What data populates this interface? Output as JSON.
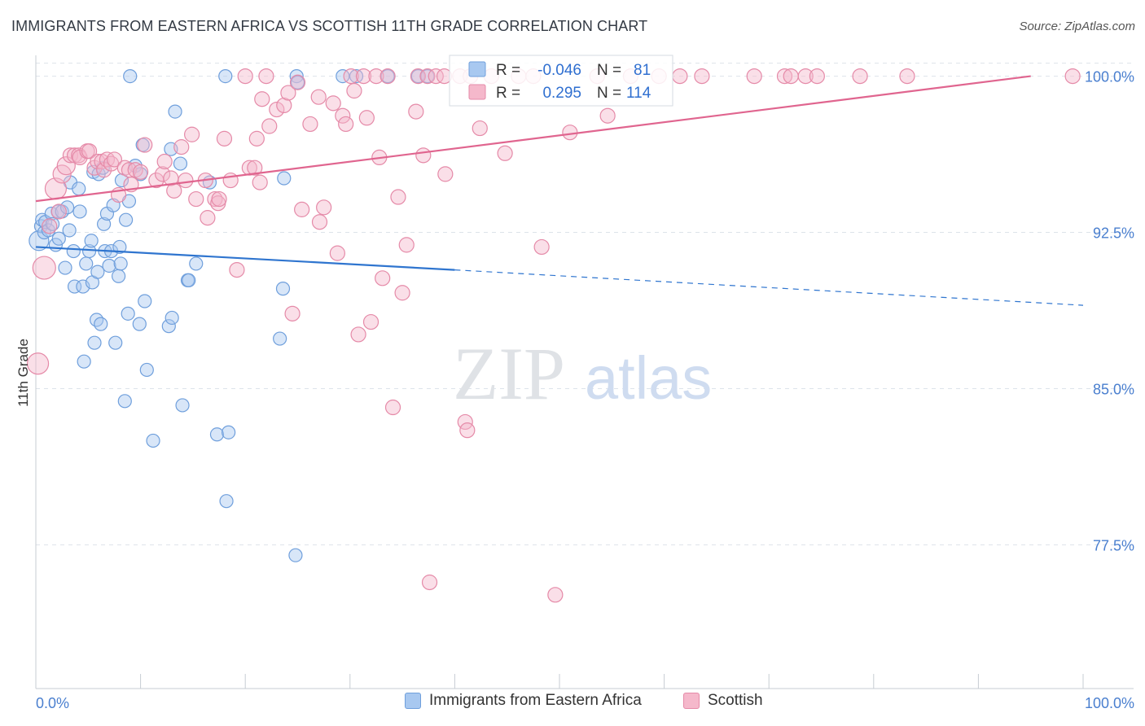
{
  "title": "IMMIGRANTS FROM EASTERN AFRICA VS SCOTTISH 11TH GRADE CORRELATION CHART",
  "source": "Source: ZipAtlas.com",
  "watermark": {
    "zip": "ZIP",
    "atlas": "atlas"
  },
  "colors": {
    "blue_fill": "#a8c8f0",
    "blue_stroke": "#6f9fdc",
    "blue_line": "#2f75cf",
    "pink_fill": "#f5b8cb",
    "pink_stroke": "#e58aa8",
    "pink_line": "#e0658f",
    "axis_text": "#4a7fcf",
    "grid": "#dde3ea"
  },
  "chart_data": {
    "type": "scatter",
    "title": "IMMIGRANTS FROM EASTERN AFRICA VS SCOTTISH 11TH GRADE CORRELATION CHART",
    "xlabel": "",
    "ylabel": "11th Grade",
    "xlim": [
      0,
      100
    ],
    "ylim": [
      70.6,
      101.0
    ],
    "x_ticks": [
      0,
      10,
      20,
      30,
      40,
      50,
      60,
      70,
      80,
      90,
      100
    ],
    "x_tick_labels": {
      "0": "0.0%",
      "100": "100.0%"
    },
    "y_ticks": [
      77.5,
      85.0,
      92.5,
      100.0
    ],
    "y_tick_labels": [
      "77.5%",
      "85.0%",
      "92.5%",
      "100.0%"
    ],
    "grid": true,
    "legend": [
      {
        "r_label": "R =",
        "r_value": "-0.046",
        "n_label": "N =",
        "n_value": "81"
      },
      {
        "r_label": "R =",
        "r_value": "0.295",
        "n_label": "N =",
        "n_value": "114"
      }
    ],
    "series": [
      {
        "name": "Immigrants from Eastern Africa",
        "trend": {
          "x0": 0,
          "y0": 91.8,
          "x1": 40,
          "y1": 90.7,
          "x_dash_end": 100,
          "y_dash_end": 89.0
        },
        "points": [
          [
            0.3,
            92.1,
            12
          ],
          [
            0.5,
            92.8,
            8
          ],
          [
            0.6,
            93.1,
            8
          ],
          [
            0.8,
            92.5,
            8
          ],
          [
            0.9,
            93.0,
            8
          ],
          [
            1.2,
            92.6,
            8
          ],
          [
            1.5,
            93.4,
            8
          ],
          [
            1.6,
            92.9,
            8
          ],
          [
            1.9,
            91.9,
            8
          ],
          [
            2.1,
            93.5,
            8
          ],
          [
            2.2,
            92.2,
            8
          ],
          [
            2.5,
            93.5,
            8
          ],
          [
            2.8,
            90.8,
            8
          ],
          [
            3.0,
            93.7,
            8
          ],
          [
            3.2,
            92.6,
            8
          ],
          [
            3.3,
            94.9,
            8
          ],
          [
            3.6,
            91.6,
            8
          ],
          [
            3.7,
            89.9,
            8
          ],
          [
            4.1,
            94.6,
            8
          ],
          [
            4.2,
            93.5,
            8
          ],
          [
            4.5,
            89.9,
            8
          ],
          [
            4.6,
            86.3,
            8
          ],
          [
            4.8,
            91.0,
            8
          ],
          [
            5.1,
            91.6,
            8
          ],
          [
            5.3,
            92.1,
            8
          ],
          [
            5.4,
            90.1,
            8
          ],
          [
            5.5,
            95.4,
            8
          ],
          [
            5.6,
            87.2,
            8
          ],
          [
            5.8,
            88.3,
            8
          ],
          [
            5.9,
            90.6,
            8
          ],
          [
            6.0,
            95.3,
            8
          ],
          [
            6.2,
            88.1,
            8
          ],
          [
            6.4,
            95.6,
            8
          ],
          [
            6.5,
            92.9,
            8
          ],
          [
            6.6,
            91.6,
            8
          ],
          [
            6.8,
            93.4,
            8
          ],
          [
            7.0,
            90.9,
            8
          ],
          [
            7.2,
            91.6,
            8
          ],
          [
            7.4,
            93.8,
            8
          ],
          [
            7.6,
            87.2,
            8
          ],
          [
            7.9,
            90.4,
            8
          ],
          [
            8.0,
            91.8,
            8
          ],
          [
            8.1,
            91.0,
            8
          ],
          [
            8.2,
            95.0,
            8
          ],
          [
            8.5,
            84.4,
            8
          ],
          [
            8.6,
            93.1,
            8
          ],
          [
            8.8,
            88.6,
            8
          ],
          [
            8.9,
            94.0,
            8
          ],
          [
            9.0,
            100.0,
            8
          ],
          [
            9.5,
            95.7,
            8
          ],
          [
            9.9,
            88.1,
            8
          ],
          [
            10.0,
            95.3,
            8
          ],
          [
            10.2,
            96.7,
            8
          ],
          [
            10.4,
            89.2,
            8
          ],
          [
            10.6,
            85.9,
            8
          ],
          [
            11.2,
            82.5,
            8
          ],
          [
            12.7,
            88.0,
            8
          ],
          [
            12.9,
            96.5,
            8
          ],
          [
            13.0,
            88.4,
            8
          ],
          [
            13.3,
            98.3,
            8
          ],
          [
            13.8,
            95.8,
            8
          ],
          [
            14.0,
            84.2,
            8
          ],
          [
            14.5,
            90.2,
            8
          ],
          [
            14.6,
            90.2,
            8
          ],
          [
            15.3,
            91.0,
            8
          ],
          [
            16.6,
            94.9,
            8
          ],
          [
            17.3,
            82.8,
            8
          ],
          [
            18.1,
            100.0,
            8
          ],
          [
            18.2,
            79.6,
            8
          ],
          [
            18.4,
            82.9,
            8
          ],
          [
            23.3,
            87.4,
            8
          ],
          [
            23.6,
            89.8,
            8
          ],
          [
            23.7,
            95.1,
            8
          ],
          [
            24.8,
            77.0,
            8
          ],
          [
            24.9,
            100.0,
            8
          ],
          [
            25.0,
            99.7,
            8
          ],
          [
            29.3,
            100.0,
            8
          ],
          [
            30.6,
            100.0,
            8
          ],
          [
            33.6,
            100.0,
            8
          ],
          [
            36.5,
            100.0,
            8
          ],
          [
            37.4,
            100.0,
            8
          ]
        ]
      },
      {
        "name": "Scottish",
        "trend": {
          "x0": 0,
          "y0": 94.0,
          "x1": 95,
          "y1": 100.0
        },
        "points": [
          [
            0.2,
            86.2,
            13
          ],
          [
            0.8,
            90.8,
            14
          ],
          [
            1.3,
            92.8,
            9
          ],
          [
            1.9,
            94.6,
            13
          ],
          [
            2.2,
            93.5,
            9
          ],
          [
            2.5,
            95.3,
            11
          ],
          [
            2.9,
            95.7,
            11
          ],
          [
            3.3,
            96.2,
            9
          ],
          [
            3.7,
            96.2,
            9
          ],
          [
            4.1,
            96.2,
            9
          ],
          [
            4.2,
            96.1,
            9
          ],
          [
            4.9,
            96.4,
            9
          ],
          [
            5.1,
            96.4,
            9
          ],
          [
            5.6,
            95.6,
            9
          ],
          [
            5.9,
            95.9,
            9
          ],
          [
            6.3,
            95.9,
            9
          ],
          [
            6.5,
            95.5,
            9
          ],
          [
            6.8,
            96.0,
            9
          ],
          [
            7.2,
            95.8,
            9
          ],
          [
            7.5,
            96.0,
            9
          ],
          [
            7.9,
            94.3,
            9
          ],
          [
            8.5,
            95.6,
            9
          ],
          [
            8.9,
            95.5,
            9
          ],
          [
            9.1,
            94.8,
            9
          ],
          [
            9.5,
            95.5,
            9
          ],
          [
            10.0,
            95.4,
            9
          ],
          [
            10.4,
            96.7,
            9
          ],
          [
            11.5,
            95.0,
            9
          ],
          [
            12.1,
            95.3,
            9
          ],
          [
            12.3,
            95.9,
            9
          ],
          [
            12.9,
            95.1,
            9
          ],
          [
            13.2,
            94.5,
            9
          ],
          [
            13.9,
            96.6,
            9
          ],
          [
            14.3,
            95.0,
            9
          ],
          [
            14.9,
            97.2,
            9
          ],
          [
            15.3,
            94.1,
            9
          ],
          [
            16.2,
            95.0,
            9
          ],
          [
            16.4,
            93.2,
            9
          ],
          [
            17.1,
            94.1,
            9
          ],
          [
            17.4,
            93.9,
            9
          ],
          [
            17.5,
            94.1,
            9
          ],
          [
            18.0,
            97.0,
            9
          ],
          [
            18.6,
            95.0,
            9
          ],
          [
            19.2,
            90.7,
            9
          ],
          [
            20.0,
            100.0,
            9
          ],
          [
            20.4,
            95.6,
            9
          ],
          [
            20.9,
            95.6,
            9
          ],
          [
            21.1,
            97.0,
            9
          ],
          [
            21.4,
            94.9,
            9
          ],
          [
            21.6,
            98.9,
            9
          ],
          [
            22.0,
            100.0,
            9
          ],
          [
            22.3,
            97.6,
            9
          ],
          [
            23.0,
            98.4,
            9
          ],
          [
            23.7,
            98.6,
            9
          ],
          [
            24.1,
            99.2,
            9
          ],
          [
            24.5,
            88.6,
            9
          ],
          [
            25.0,
            99.7,
            9
          ],
          [
            25.4,
            93.6,
            9
          ],
          [
            26.2,
            97.7,
            9
          ],
          [
            27.0,
            99.0,
            9
          ],
          [
            27.1,
            93.0,
            9
          ],
          [
            27.5,
            93.7,
            9
          ],
          [
            28.4,
            98.7,
            9
          ],
          [
            28.8,
            91.5,
            9
          ],
          [
            29.3,
            98.1,
            9
          ],
          [
            29.6,
            97.7,
            9
          ],
          [
            30.1,
            100.0,
            9
          ],
          [
            30.4,
            99.3,
            9
          ],
          [
            30.8,
            87.6,
            9
          ],
          [
            31.3,
            100.0,
            9
          ],
          [
            31.6,
            98.0,
            9
          ],
          [
            32.0,
            88.2,
            9
          ],
          [
            32.5,
            100.0,
            9
          ],
          [
            32.8,
            96.1,
            9
          ],
          [
            33.1,
            90.3,
            9
          ],
          [
            33.6,
            100.0,
            9
          ],
          [
            34.1,
            84.1,
            9
          ],
          [
            34.6,
            94.2,
            9
          ],
          [
            35.0,
            89.6,
            9
          ],
          [
            35.4,
            91.9,
            9
          ],
          [
            36.3,
            98.3,
            9
          ],
          [
            36.5,
            100.0,
            9
          ],
          [
            37.0,
            96.2,
            9
          ],
          [
            37.4,
            100.0,
            9
          ],
          [
            37.6,
            75.7,
            9
          ],
          [
            38.2,
            100.0,
            9
          ],
          [
            39.0,
            100.0,
            9
          ],
          [
            39.1,
            95.3,
            9
          ],
          [
            40.5,
            100.0,
            9
          ],
          [
            41.0,
            83.4,
            9
          ],
          [
            41.2,
            83.0,
            9
          ],
          [
            41.5,
            100.0,
            9
          ],
          [
            42.4,
            97.5,
            9
          ],
          [
            43.5,
            100.0,
            9
          ],
          [
            44.8,
            96.3,
            9
          ],
          [
            46.1,
            100.0,
            9
          ],
          [
            47.5,
            100.0,
            9
          ],
          [
            48.3,
            91.8,
            9
          ],
          [
            49.6,
            75.1,
            9
          ],
          [
            51.0,
            97.3,
            9
          ],
          [
            53.6,
            100.0,
            9
          ],
          [
            54.6,
            98.1,
            9
          ],
          [
            56.8,
            100.0,
            9
          ],
          [
            59.5,
            100.0,
            9
          ],
          [
            61.5,
            100.0,
            9
          ],
          [
            63.6,
            100.0,
            9
          ],
          [
            68.6,
            100.0,
            9
          ],
          [
            71.5,
            100.0,
            9
          ],
          [
            72.1,
            100.0,
            9
          ],
          [
            73.5,
            100.0,
            9
          ],
          [
            74.6,
            100.0,
            9
          ],
          [
            78.7,
            100.0,
            9
          ],
          [
            83.2,
            100.0,
            9
          ],
          [
            99.0,
            100.0,
            9
          ]
        ]
      }
    ]
  }
}
